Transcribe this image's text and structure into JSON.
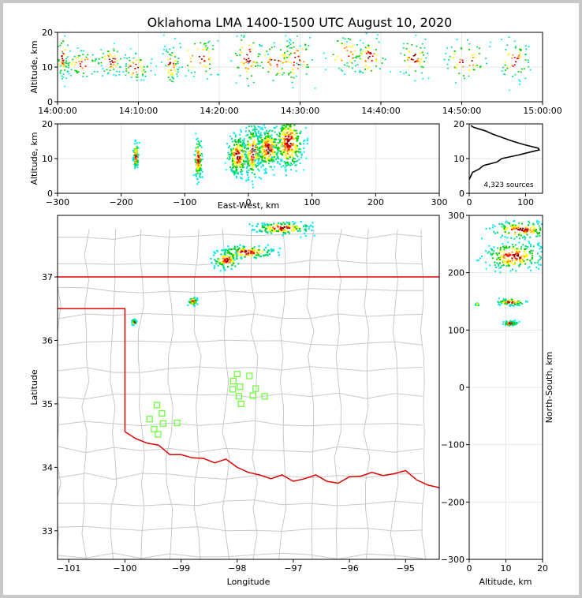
{
  "chart_data": [
    {
      "panel": "time-altitude",
      "type": "scatter",
      "title": "Oklahoma LMA 1400-1500 UTC August 10, 2020",
      "ylabel": "Altitude, km",
      "xlabel": "",
      "xlim_minutes": [
        0,
        60
      ],
      "ylim": [
        0,
        20
      ],
      "x_tick_labels": [
        "14:00:00",
        "14:10:00",
        "14:20:00",
        "14:30:00",
        "14:40:00",
        "14:50:00",
        "15:00:00"
      ],
      "y_tick_labels": [
        "0",
        "10",
        "20"
      ],
      "source_clusters": [
        {
          "t": 0.5,
          "alt": 13,
          "spread_t": 0.4,
          "spread_alt": 3
        },
        {
          "t": 3,
          "alt": 11,
          "spread_t": 1.2,
          "spread_alt": 2
        },
        {
          "t": 6.5,
          "alt": 12,
          "spread_t": 1.0,
          "spread_alt": 2
        },
        {
          "t": 9.5,
          "alt": 10,
          "spread_t": 1.0,
          "spread_alt": 2
        },
        {
          "t": 14,
          "alt": 11,
          "spread_t": 0.5,
          "spread_alt": 3
        },
        {
          "t": 17.5,
          "alt": 13,
          "spread_t": 1.5,
          "spread_alt": 3
        },
        {
          "t": 23.5,
          "alt": 13,
          "spread_t": 1.0,
          "spread_alt": 4
        },
        {
          "t": 27,
          "alt": 12,
          "spread_t": 1.5,
          "spread_alt": 3
        },
        {
          "t": 29.5,
          "alt": 12,
          "spread_t": 1.0,
          "spread_alt": 4
        },
        {
          "t": 35.5,
          "alt": 14,
          "spread_t": 1.2,
          "spread_alt": 3
        },
        {
          "t": 38.5,
          "alt": 13,
          "spread_t": 1.2,
          "spread_alt": 3
        },
        {
          "t": 44,
          "alt": 13,
          "spread_t": 1.0,
          "spread_alt": 3
        },
        {
          "t": 50.5,
          "alt": 12,
          "spread_t": 1.5,
          "spread_alt": 3
        },
        {
          "t": 56.5,
          "alt": 12,
          "spread_t": 1.0,
          "spread_alt": 3
        }
      ]
    },
    {
      "panel": "eastwest-altitude",
      "type": "scatter",
      "xlabel": "East-West, km",
      "ylabel": "Altitude, km",
      "xlim": [
        -300,
        300
      ],
      "ylim": [
        0,
        20
      ],
      "x_tick_labels": [
        "−300",
        "−200",
        "−100",
        "0",
        "100",
        "200",
        "300"
      ],
      "y_tick_labels": [
        "0",
        "10",
        "20"
      ],
      "source_clusters": [
        {
          "x": -178,
          "alt": 11,
          "spread_x": 2,
          "spread_alt": 2
        },
        {
          "x": -80,
          "alt": 10,
          "spread_x": 3,
          "spread_alt": 3
        },
        {
          "x": -18,
          "alt": 11,
          "spread_x": 8,
          "spread_alt": 3
        },
        {
          "x": 6,
          "alt": 12,
          "spread_x": 7,
          "spread_alt": 4
        },
        {
          "x": 30,
          "alt": 13,
          "spread_x": 10,
          "spread_alt": 3
        },
        {
          "x": 62,
          "alt": 15,
          "spread_x": 12,
          "spread_alt": 4
        }
      ]
    },
    {
      "panel": "altitude-histogram",
      "type": "line",
      "xlim": [
        0,
        130
      ],
      "ylim": [
        0,
        20
      ],
      "x_tick_labels": [
        "0",
        "100"
      ],
      "y_tick_labels": [
        "0",
        "10",
        "20"
      ],
      "annotation": "4,323 sources",
      "profile": [
        {
          "alt": 4,
          "count": 0
        },
        {
          "alt": 5,
          "count": 3
        },
        {
          "alt": 6,
          "count": 8
        },
        {
          "alt": 7,
          "count": 18
        },
        {
          "alt": 8,
          "count": 30
        },
        {
          "alt": 9,
          "count": 45
        },
        {
          "alt": 10,
          "count": 62
        },
        {
          "alt": 11,
          "count": 85
        },
        {
          "alt": 12,
          "count": 110
        },
        {
          "alt": 12.5,
          "count": 125
        },
        {
          "alt": 13,
          "count": 118
        },
        {
          "alt": 14,
          "count": 98
        },
        {
          "alt": 15,
          "count": 78
        },
        {
          "alt": 16,
          "count": 55
        },
        {
          "alt": 17,
          "count": 40
        },
        {
          "alt": 18,
          "count": 28
        },
        {
          "alt": 19,
          "count": 12
        },
        {
          "alt": 19.5,
          "count": 3
        }
      ]
    },
    {
      "panel": "plan-view",
      "type": "map",
      "xlabel": "Longitude",
      "ylabel": "Latitude",
      "xlim": [
        -101.2,
        -94.4
      ],
      "ylim": [
        32.55,
        37.97
      ],
      "x_tick_labels": [
        "−101",
        "−100",
        "−99",
        "−98",
        "−97",
        "−96",
        "−95"
      ],
      "y_tick_labels": [
        "33",
        "34",
        "35",
        "36",
        "37"
      ],
      "source_clusters": [
        {
          "lon": -97.2,
          "lat": 37.78,
          "spread_lon": 0.25,
          "spread_lat": 0.05
        },
        {
          "lon": -97.85,
          "lat": 37.4,
          "spread_lon": 0.25,
          "spread_lat": 0.05
        },
        {
          "lon": -98.2,
          "lat": 37.28,
          "spread_lon": 0.12,
          "spread_lat": 0.07
        },
        {
          "lon": -98.8,
          "lat": 36.63,
          "spread_lon": 0.04,
          "spread_lat": 0.03
        },
        {
          "lon": -99.85,
          "lat": 36.3,
          "spread_lon": 0.02,
          "spread_lat": 0.02
        }
      ],
      "stations": [
        {
          "lon": -98.0,
          "lat": 35.47
        },
        {
          "lon": -97.78,
          "lat": 35.44
        },
        {
          "lon": -98.07,
          "lat": 35.36
        },
        {
          "lon": -97.95,
          "lat": 35.27
        },
        {
          "lon": -97.67,
          "lat": 35.24
        },
        {
          "lon": -98.08,
          "lat": 35.23
        },
        {
          "lon": -97.97,
          "lat": 35.12
        },
        {
          "lon": -97.72,
          "lat": 35.13
        },
        {
          "lon": -97.51,
          "lat": 35.12
        },
        {
          "lon": -97.93,
          "lat": 35.0
        },
        {
          "lon": -99.43,
          "lat": 34.98
        },
        {
          "lon": -99.34,
          "lat": 34.85
        },
        {
          "lon": -99.56,
          "lat": 34.76
        },
        {
          "lon": -99.32,
          "lat": 34.69
        },
        {
          "lon": -99.07,
          "lat": 34.7
        },
        {
          "lon": -99.48,
          "lat": 34.6
        },
        {
          "lon": -99.41,
          "lat": 34.52
        }
      ]
    },
    {
      "panel": "altitude-northsouth",
      "type": "scatter",
      "xlabel": "Altitude, km",
      "ylabel": "North-South, km",
      "xlim": [
        0,
        20
      ],
      "ylim": [
        -300,
        300
      ],
      "x_tick_labels": [
        "0",
        "10",
        "20"
      ],
      "y_tick_labels": [
        "−300",
        "−200",
        "−100",
        "0",
        "100",
        "200",
        "300"
      ],
      "source_clusters": [
        {
          "alt": 14,
          "y": 276,
          "spread_alt": 4,
          "spread_y": 8
        },
        {
          "alt": 12,
          "y": 230,
          "spread_alt": 4,
          "spread_y": 12
        },
        {
          "alt": 11,
          "y": 150,
          "spread_alt": 2,
          "spread_y": 3
        },
        {
          "alt": 11,
          "y": 113,
          "spread_alt": 1,
          "spread_y": 2
        },
        {
          "alt": 2,
          "y": 146,
          "spread_alt": 0.2,
          "spread_y": 1
        }
      ]
    }
  ]
}
